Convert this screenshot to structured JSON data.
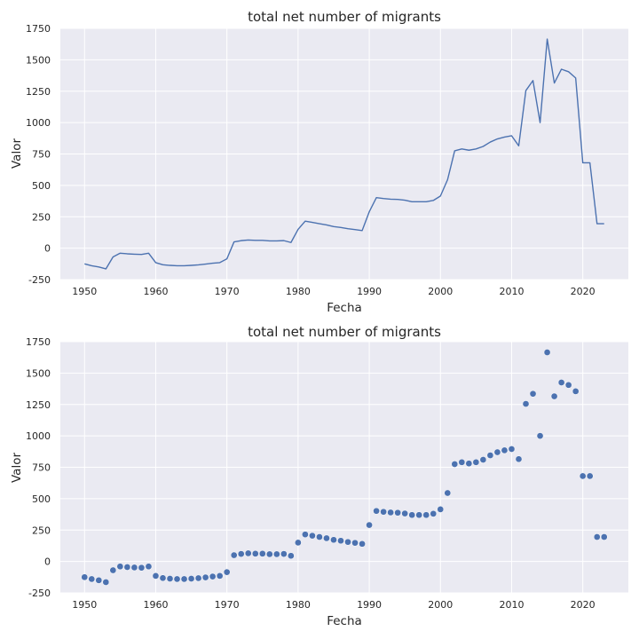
{
  "chart_data": [
    {
      "type": "line",
      "title": "total net number of migrants",
      "xlabel": "Fecha",
      "ylabel": "Valor",
      "xlim": [
        1946.6,
        2026.4
      ],
      "ylim": [
        -250,
        1750
      ],
      "xticks": [
        1950,
        1960,
        1970,
        1980,
        1990,
        2000,
        2010,
        2020
      ],
      "yticks": [
        -250,
        0,
        250,
        500,
        750,
        1000,
        1250,
        1500,
        1750
      ],
      "grid": true,
      "color": "#4c72b0",
      "x": [
        1950,
        1951,
        1952,
        1953,
        1954,
        1955,
        1956,
        1957,
        1958,
        1959,
        1960,
        1961,
        1962,
        1963,
        1964,
        1965,
        1966,
        1967,
        1968,
        1969,
        1970,
        1971,
        1972,
        1973,
        1974,
        1975,
        1976,
        1977,
        1978,
        1979,
        1980,
        1981,
        1982,
        1983,
        1984,
        1985,
        1986,
        1987,
        1988,
        1989,
        1990,
        1991,
        1992,
        1993,
        1994,
        1995,
        1996,
        1997,
        1998,
        1999,
        2000,
        2001,
        2002,
        2003,
        2004,
        2005,
        2006,
        2007,
        2008,
        2009,
        2010,
        2011,
        2012,
        2013,
        2014,
        2015,
        2016,
        2017,
        2018,
        2019,
        2020,
        2021,
        2022,
        2023
      ],
      "y": [
        -125,
        -140,
        -150,
        -165,
        -70,
        -40,
        -45,
        -48,
        -50,
        -40,
        -115,
        -132,
        -137,
        -140,
        -140,
        -137,
        -133,
        -127,
        -120,
        -115,
        -85,
        50,
        60,
        65,
        62,
        62,
        58,
        58,
        60,
        45,
        150,
        215,
        205,
        195,
        185,
        172,
        165,
        155,
        148,
        140,
        290,
        402,
        395,
        390,
        388,
        382,
        370,
        370,
        370,
        380,
        415,
        545,
        775,
        790,
        780,
        790,
        810,
        845,
        870,
        885,
        895,
        815,
        1255,
        1335,
        1000,
        1665,
        1315,
        1425,
        1405,
        1355,
        680,
        680,
        195,
        195
      ]
    },
    {
      "type": "scatter",
      "title": "total net number of migrants",
      "xlabel": "Fecha",
      "ylabel": "Valor",
      "xlim": [
        1946.6,
        2026.4
      ],
      "ylim": [
        -250,
        1750
      ],
      "xticks": [
        1950,
        1960,
        1970,
        1980,
        1990,
        2000,
        2010,
        2020
      ],
      "yticks": [
        -250,
        0,
        250,
        500,
        750,
        1000,
        1250,
        1500,
        1750
      ],
      "grid": true,
      "color": "#4c72b0",
      "x": [
        1950,
        1951,
        1952,
        1953,
        1954,
        1955,
        1956,
        1957,
        1958,
        1959,
        1960,
        1961,
        1962,
        1963,
        1964,
        1965,
        1966,
        1967,
        1968,
        1969,
        1970,
        1971,
        1972,
        1973,
        1974,
        1975,
        1976,
        1977,
        1978,
        1979,
        1980,
        1981,
        1982,
        1983,
        1984,
        1985,
        1986,
        1987,
        1988,
        1989,
        1990,
        1991,
        1992,
        1993,
        1994,
        1995,
        1996,
        1997,
        1998,
        1999,
        2000,
        2001,
        2002,
        2003,
        2004,
        2005,
        2006,
        2007,
        2008,
        2009,
        2010,
        2011,
        2012,
        2013,
        2014,
        2015,
        2016,
        2017,
        2018,
        2019,
        2020,
        2021,
        2022,
        2023
      ],
      "y": [
        -125,
        -140,
        -150,
        -165,
        -70,
        -40,
        -45,
        -48,
        -50,
        -40,
        -115,
        -132,
        -137,
        -140,
        -140,
        -137,
        -133,
        -127,
        -120,
        -115,
        -85,
        50,
        60,
        65,
        62,
        62,
        58,
        58,
        60,
        45,
        150,
        215,
        205,
        195,
        185,
        172,
        165,
        155,
        148,
        140,
        290,
        402,
        395,
        390,
        388,
        382,
        370,
        370,
        370,
        380,
        415,
        545,
        775,
        790,
        780,
        790,
        810,
        845,
        870,
        885,
        895,
        815,
        1255,
        1335,
        1000,
        1665,
        1315,
        1425,
        1405,
        1355,
        680,
        680,
        195,
        195
      ]
    }
  ]
}
